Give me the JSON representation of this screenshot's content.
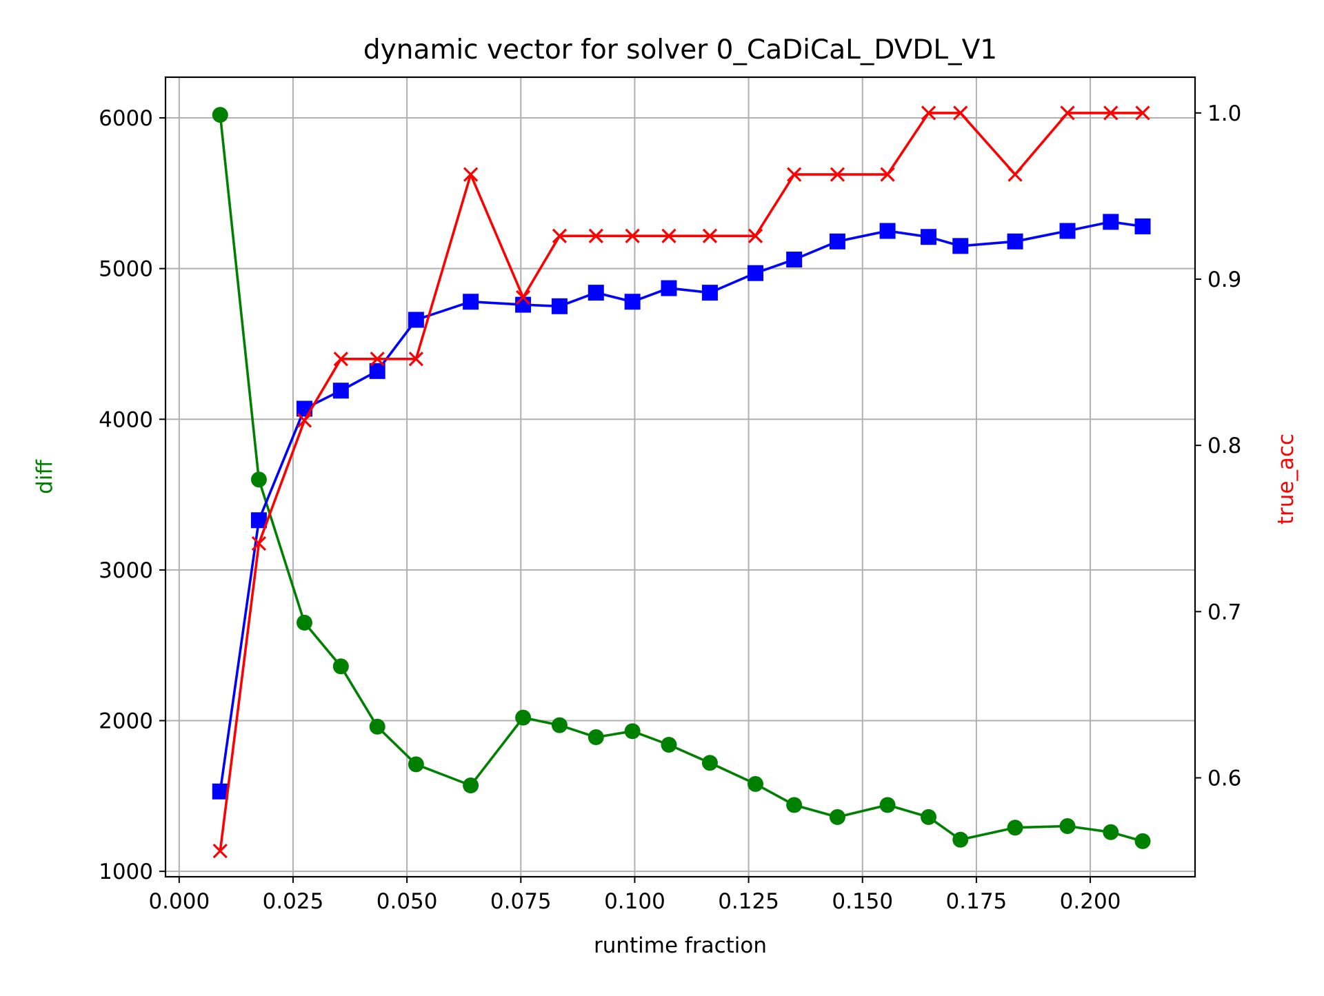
{
  "chart_data": {
    "type": "line",
    "title": "dynamic vector for solver 0_CaDiCaL_DVDL_V1",
    "xlabel": "runtime fraction",
    "ylabel_left": "diff",
    "ylabel_right": "true_acc",
    "xlim": [
      -0.003,
      0.223
    ],
    "ylim_left": [
      964,
      6270
    ],
    "ylim_right": [
      0.5405,
      1.0215
    ],
    "x_ticks": [
      "0.000",
      "0.025",
      "0.050",
      "0.075",
      "0.100",
      "0.125",
      "0.150",
      "0.175",
      "0.200"
    ],
    "y_left_ticks": [
      "1000",
      "2000",
      "3000",
      "4000",
      "5000",
      "6000"
    ],
    "y_right_ticks": [
      "0.6",
      "0.7",
      "0.8",
      "0.9",
      "1.0"
    ],
    "grid": true,
    "colors": {
      "diff": "#008000",
      "blue_series": "#0000ff",
      "true_acc": "#ff0000"
    },
    "series": [
      {
        "name": "diff",
        "axis": "left",
        "marker": "circle",
        "color": "#008000",
        "x": [
          0.009,
          0.0175,
          0.0275,
          0.0355,
          0.0435,
          0.052,
          0.064,
          0.0755,
          0.0835,
          0.0915,
          0.0995,
          0.1075,
          0.1165,
          0.1265,
          0.135,
          0.1445,
          0.1555,
          0.1645,
          0.1715,
          0.1835,
          0.195,
          0.2045,
          0.2115
        ],
        "values": [
          6020,
          3600,
          2650,
          2360,
          1960,
          1710,
          1570,
          2020,
          1970,
          1890,
          1930,
          1840,
          1720,
          1580,
          1440,
          1360,
          1440,
          1360,
          1210,
          1290,
          1300,
          1260,
          1200
        ]
      },
      {
        "axis": "left",
        "marker": "square",
        "color": "#0000ff",
        "x": [
          0.009,
          0.0175,
          0.0275,
          0.0355,
          0.0435,
          0.052,
          0.064,
          0.0755,
          0.0835,
          0.0915,
          0.0995,
          0.1075,
          0.1165,
          0.1265,
          0.135,
          0.1445,
          0.1555,
          0.1645,
          0.1715,
          0.1835,
          0.195,
          0.2045,
          0.2115
        ],
        "values": [
          1530,
          3330,
          4070,
          4190,
          4320,
          4660,
          4780,
          4760,
          4750,
          4840,
          4780,
          4870,
          4840,
          4970,
          5060,
          5180,
          5250,
          5210,
          5150,
          5180,
          5250,
          5310,
          5280
        ]
      },
      {
        "name": "true_acc",
        "axis": "right",
        "marker": "x",
        "color": "#ff0000",
        "x": [
          0.009,
          0.0175,
          0.0275,
          0.0355,
          0.0435,
          0.052,
          0.064,
          0.0755,
          0.0835,
          0.0915,
          0.0995,
          0.1075,
          0.1165,
          0.1265,
          0.135,
          0.1445,
          0.1555,
          0.1645,
          0.1715,
          0.1835,
          0.195,
          0.2045,
          0.2115
        ],
        "values": [
          0.556,
          0.741,
          0.815,
          0.852,
          0.852,
          0.852,
          0.963,
          0.889,
          0.926,
          0.926,
          0.926,
          0.926,
          0.926,
          0.926,
          0.963,
          0.963,
          0.963,
          1.0,
          1.0,
          0.963,
          1.0,
          1.0,
          1.0
        ]
      }
    ]
  }
}
